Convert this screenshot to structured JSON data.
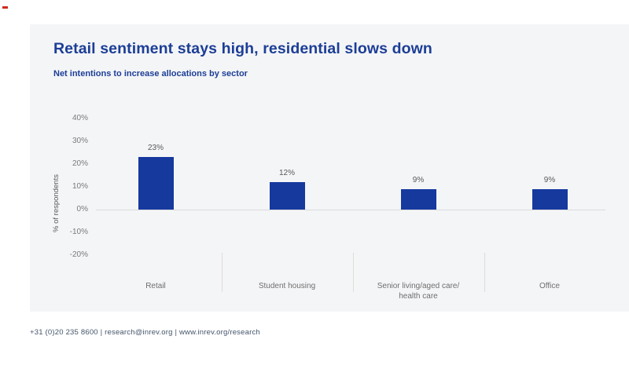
{
  "page": {
    "title": "Retail sentiment stays high, residential slows down",
    "subtitle": "Net intentions to increase allocations by sector",
    "footer": "+31 (0)20 235 8600 | research@inrev.org | www.inrev.org/research"
  },
  "colors": {
    "bar": "#16399e",
    "title_text": "#1c3e96",
    "card_background": "#f4f5f7",
    "axis_text": "#595959",
    "tick_text": "#7a7a7a",
    "category_text": "#6e6e6e",
    "footer_text": "#44546a",
    "red_mark": "#cf2a1b",
    "axis_line": "#dadada"
  },
  "chart_data": {
    "type": "bar",
    "title": "Net intentions to increase allocations by sector",
    "categories": [
      "Retail",
      "Student housing",
      "Senior living/aged care/\nhealth care",
      "Office"
    ],
    "values": [
      23,
      12,
      9,
      9
    ],
    "data_labels": [
      "23%",
      "12%",
      "9%",
      "9%"
    ],
    "xlabel": "",
    "ylabel": "% of respondents",
    "ylim": [
      -20,
      40
    ],
    "yticks": [
      {
        "value": 40,
        "label": "40%"
      },
      {
        "value": 30,
        "label": "30%"
      },
      {
        "value": 20,
        "label": "20%"
      },
      {
        "value": 10,
        "label": "10%"
      },
      {
        "value": 0,
        "label": "0%"
      },
      {
        "value": -10,
        "label": "-10%"
      },
      {
        "value": -20,
        "label": "-20%"
      }
    ],
    "grid": false,
    "legend": false,
    "series": [
      {
        "name": "Net intentions",
        "values": [
          23,
          12,
          9,
          9
        ]
      }
    ]
  }
}
